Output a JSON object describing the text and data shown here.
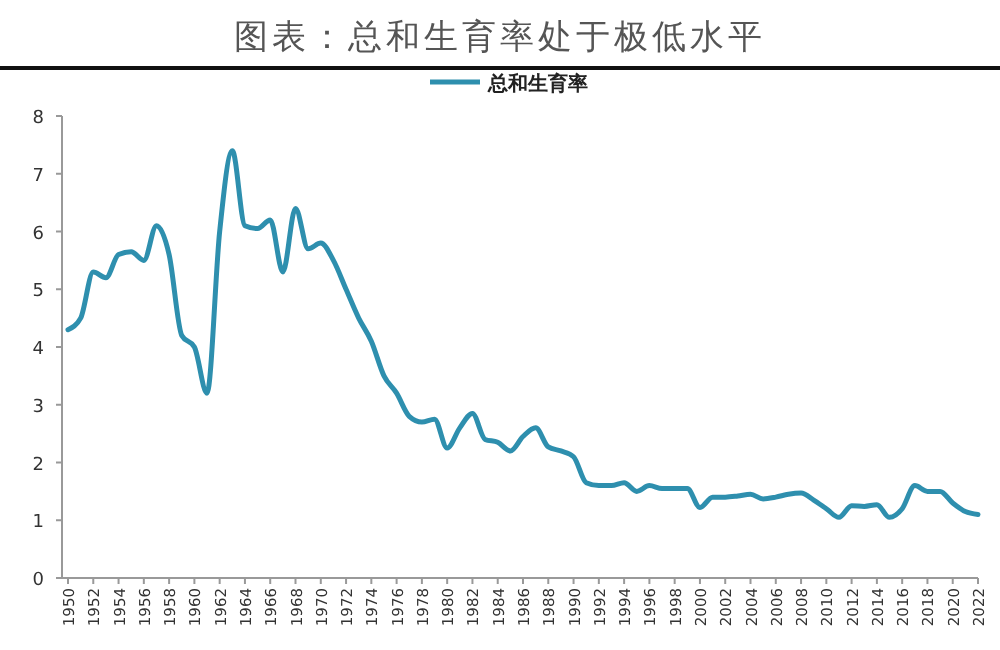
{
  "chart_data": {
    "type": "line",
    "title": "图表：总和生育率处于极低水平",
    "categories": [
      "1950",
      null,
      "1952",
      null,
      "1954",
      null,
      "1956",
      null,
      "1958",
      null,
      "1960",
      null,
      "1962",
      null,
      "1964",
      null,
      "1966",
      null,
      "1968",
      null,
      "1970",
      null,
      "1972",
      null,
      "1974",
      null,
      "1976",
      null,
      "1978",
      null,
      "1980",
      null,
      "1982",
      null,
      "1984",
      null,
      "1986",
      null,
      "1988",
      null,
      "1990",
      null,
      "1992",
      null,
      "1994",
      null,
      "1996",
      null,
      "1998",
      null,
      "2000",
      null,
      "2002",
      null,
      "2004",
      null,
      "2006",
      null,
      "2008",
      null,
      "2010",
      null,
      "2012",
      null,
      "2014",
      null,
      "2016",
      null,
      "2018",
      null,
      "2020",
      null,
      "2022"
    ],
    "series": [
      {
        "name": "总和生育率",
        "color": "#2e8fae",
        "values": [
          4.3,
          4.5,
          5.3,
          5.2,
          5.6,
          5.65,
          5.5,
          6.1,
          5.6,
          4.2,
          4.0,
          3.2,
          6.0,
          7.4,
          6.1,
          6.05,
          6.2,
          5.3,
          6.4,
          5.7,
          5.8,
          5.5,
          5.0,
          4.5,
          4.1,
          3.5,
          3.2,
          2.8,
          2.7,
          2.75,
          2.25,
          2.6,
          2.85,
          2.4,
          2.35,
          2.2,
          2.45,
          2.6,
          2.27,
          2.2,
          2.1,
          1.65,
          1.6,
          1.6,
          1.65,
          1.5,
          1.6,
          1.55,
          1.55,
          1.55,
          1.22,
          1.4,
          1.4,
          1.42,
          1.45,
          1.37,
          1.4,
          1.45,
          1.47,
          1.35,
          1.2,
          1.05,
          1.25,
          1.24,
          1.27,
          1.05,
          1.2,
          1.6,
          1.5,
          1.5,
          1.3,
          1.15,
          1.1
        ]
      }
    ],
    "ylim": [
      0,
      8
    ],
    "yticks": [
      0,
      1,
      2,
      3,
      4,
      5,
      6,
      7,
      8
    ],
    "legend": "top",
    "grid": false
  }
}
